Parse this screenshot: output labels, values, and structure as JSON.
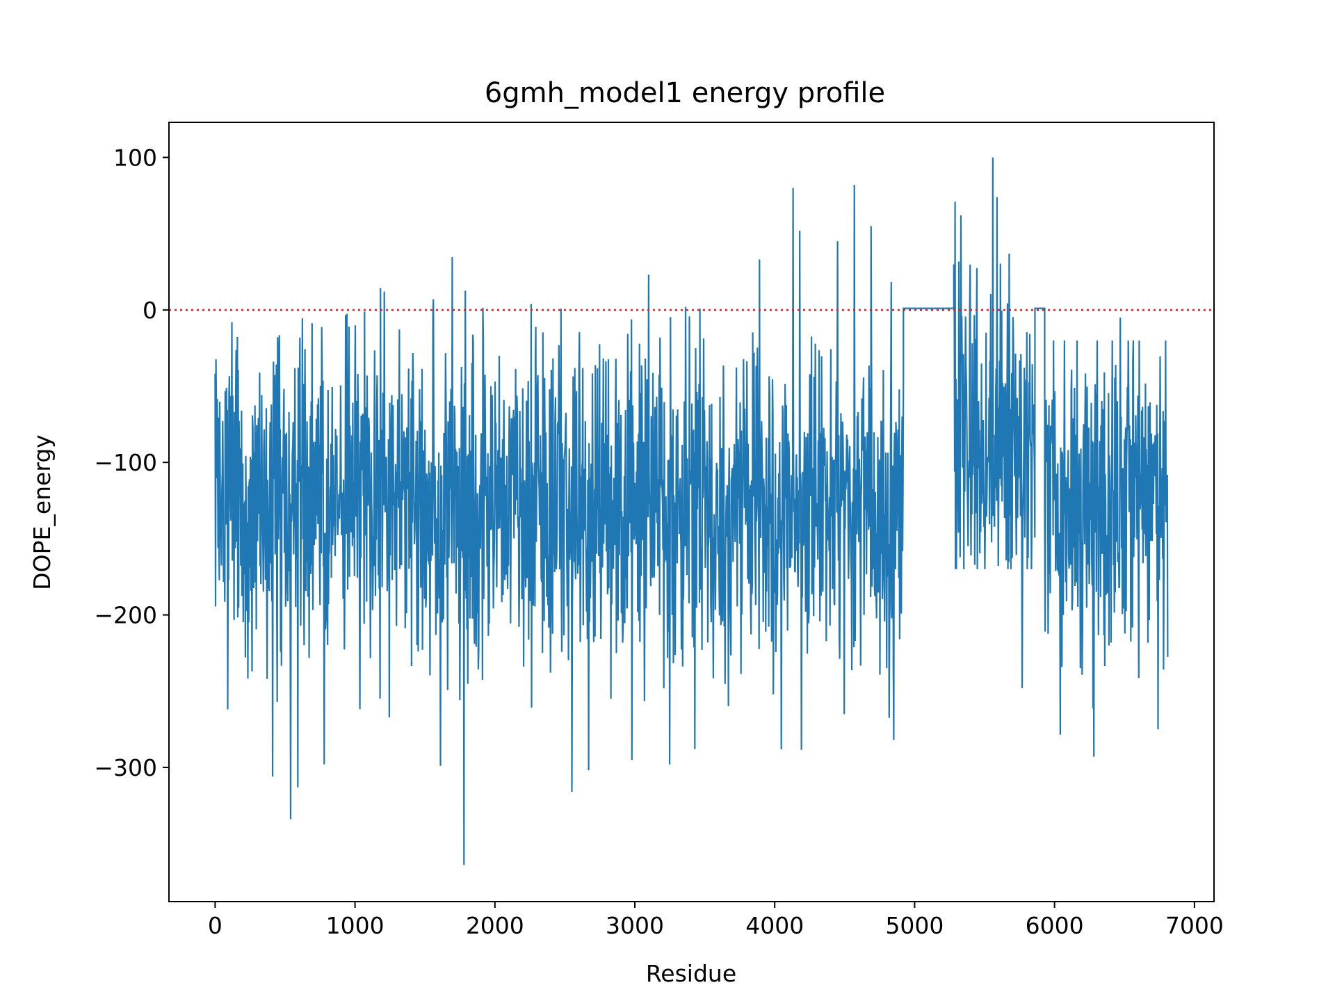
{
  "chart_data": {
    "type": "line",
    "title": "6gmh_model1 energy profile",
    "xlabel": "Residue",
    "ylabel": "DOPE_energy",
    "xlim": [
      -330,
      7140
    ],
    "ylim": [
      -388,
      123
    ],
    "xticks": [
      0,
      1000,
      2000,
      3000,
      4000,
      5000,
      6000,
      7000
    ],
    "xtick_labels": [
      "0",
      "1000",
      "2000",
      "3000",
      "4000",
      "5000",
      "6000",
      "7000"
    ],
    "yticks": [
      100,
      0,
      -100,
      -200,
      -300
    ],
    "ytick_labels": [
      "100",
      "0",
      "−100",
      "−200",
      "−300"
    ],
    "grid": false,
    "legend": "none",
    "reference_line": {
      "y": 0,
      "style": "dotted",
      "color": "#e41a1c"
    },
    "series": [
      {
        "color": "#1f77b4",
        "segments": [
          {
            "x_start": 0,
            "x_end": 4920,
            "mean": -128,
            "spread": 55,
            "min": -365,
            "max": 82
          },
          {
            "x_start": 4920,
            "x_end": 5280,
            "flat": 1
          },
          {
            "x_start": 5280,
            "x_end": 5860,
            "mean": -75,
            "spread": 50,
            "min": -170,
            "max": 100
          },
          {
            "x_start": 5860,
            "x_end": 5930,
            "flat": 1
          },
          {
            "x_start": 5930,
            "x_end": 6810,
            "mean": -120,
            "spread": 50,
            "min": -295,
            "max": -5
          }
        ],
        "extremes": [
          {
            "x": 120,
            "y": -8
          },
          {
            "x": 90,
            "y": -262
          },
          {
            "x": 410,
            "y": -306
          },
          {
            "x": 540,
            "y": -334
          },
          {
            "x": 590,
            "y": -313
          },
          {
            "x": 780,
            "y": -298
          },
          {
            "x": 1210,
            "y": 12
          },
          {
            "x": 1560,
            "y": 7
          },
          {
            "x": 1610,
            "y": -299
          },
          {
            "x": 1780,
            "y": -364
          },
          {
            "x": 2260,
            "y": 4
          },
          {
            "x": 2550,
            "y": -316
          },
          {
            "x": 2670,
            "y": -302
          },
          {
            "x": 2980,
            "y": -295
          },
          {
            "x": 3250,
            "y": -298
          },
          {
            "x": 3430,
            "y": -288
          },
          {
            "x": 3890,
            "y": 33
          },
          {
            "x": 4130,
            "y": 80
          },
          {
            "x": 4180,
            "y": 52
          },
          {
            "x": 4450,
            "y": 45
          },
          {
            "x": 4570,
            "y": 82
          },
          {
            "x": 4690,
            "y": 55
          },
          {
            "x": 4850,
            "y": -282
          },
          {
            "x": 5290,
            "y": 71
          },
          {
            "x": 5330,
            "y": 62
          },
          {
            "x": 5560,
            "y": 100
          },
          {
            "x": 5590,
            "y": 74
          },
          {
            "x": 5770,
            "y": -248
          },
          {
            "x": 6280,
            "y": -293
          },
          {
            "x": 6470,
            "y": -5
          },
          {
            "x": 6740,
            "y": -275
          }
        ]
      }
    ]
  }
}
